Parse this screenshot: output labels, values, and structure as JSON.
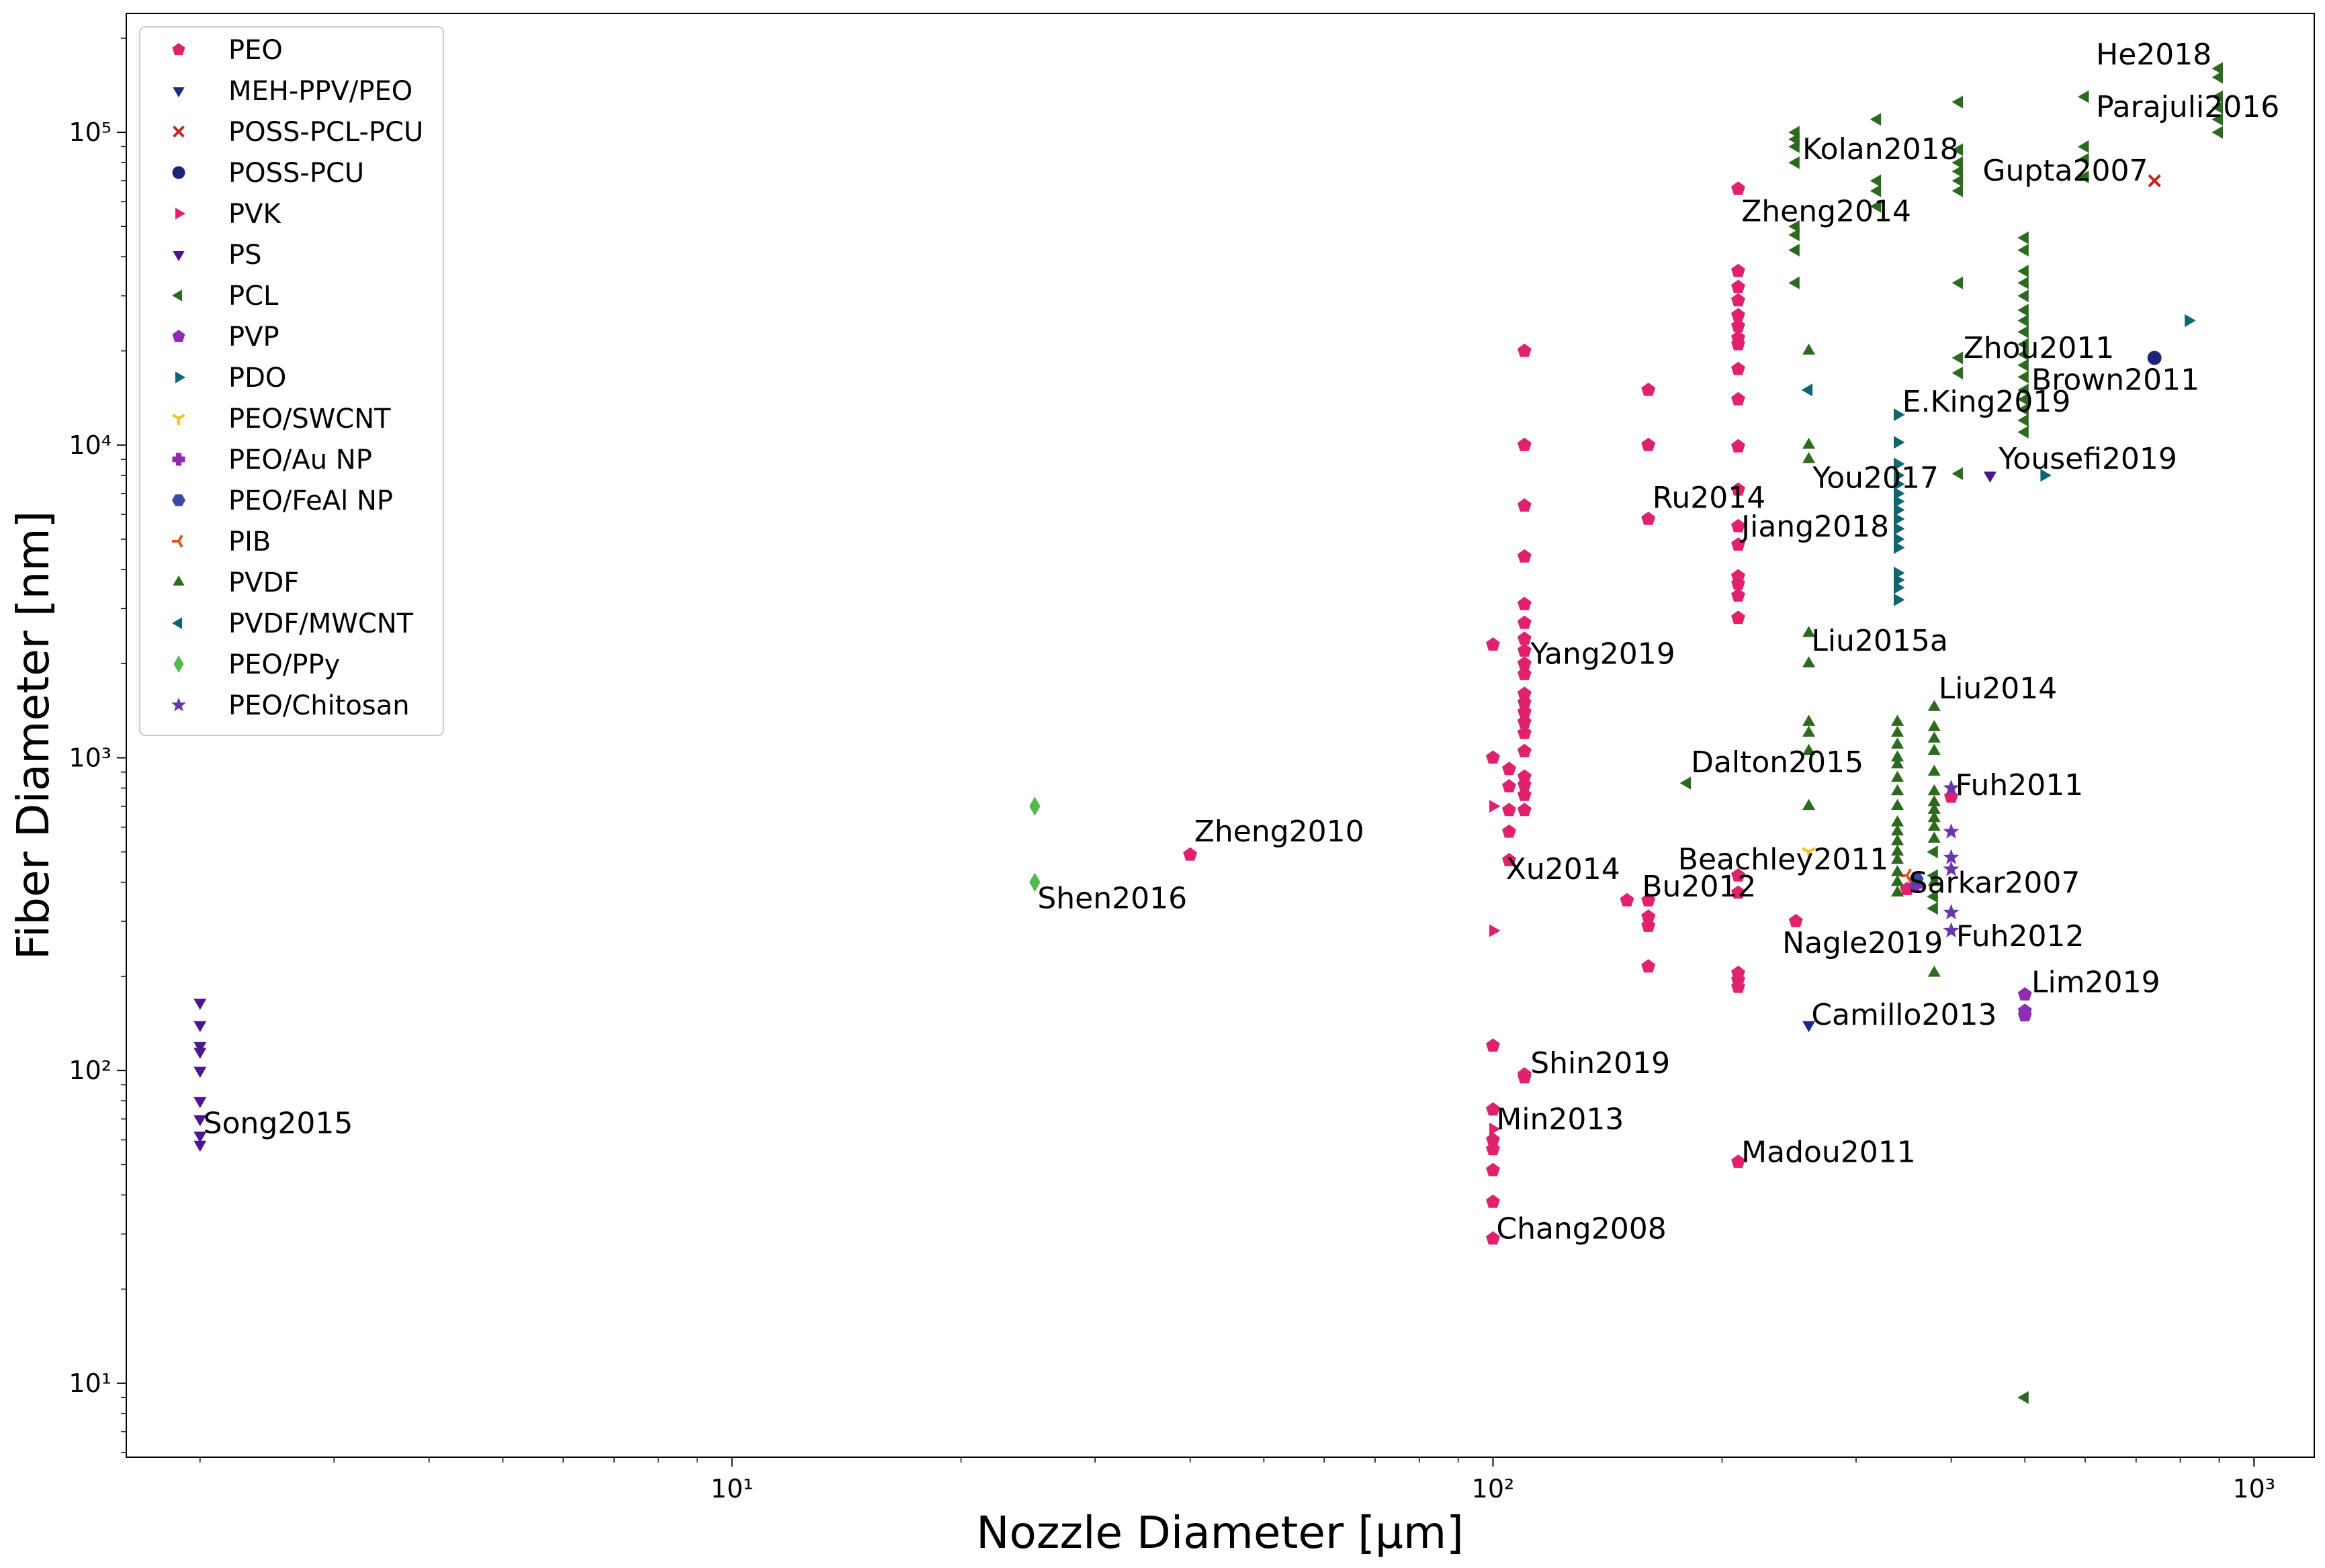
{
  "chart_data": {
    "type": "scatter",
    "xlabel": "Nozzle Diameter    [μm]",
    "ylabel": "Fiber Diameter    [nm]",
    "xscale": "log",
    "yscale": "log",
    "xlim": [
      1.6,
      1200
    ],
    "ylim": [
      5.8,
      240000
    ],
    "xticks": [
      {
        "value": 10,
        "label": "10¹"
      },
      {
        "value": 100,
        "label": "10²"
      },
      {
        "value": 1000,
        "label": "10³"
      }
    ],
    "yticks": [
      {
        "value": 10,
        "label": "10¹"
      },
      {
        "value": 100,
        "label": "10²"
      },
      {
        "value": 1000,
        "label": "10³"
      },
      {
        "value": 10000,
        "label": "10⁴"
      },
      {
        "value": 100000,
        "label": "10⁵"
      }
    ],
    "grid": false,
    "legend_position": "top-left",
    "series": [
      {
        "name": "PEO",
        "marker": "pentagon",
        "color": "#e0226e",
        "points": [
          [
            40,
            490
          ],
          [
            100,
            2300
          ],
          [
            100,
            1000
          ],
          [
            100,
            120
          ],
          [
            100,
            75
          ],
          [
            100,
            60
          ],
          [
            100,
            56
          ],
          [
            100,
            48
          ],
          [
            100,
            38
          ],
          [
            100,
            29
          ],
          [
            105,
            920
          ],
          [
            105,
            810
          ],
          [
            105,
            680
          ],
          [
            105,
            580
          ],
          [
            105,
            470
          ],
          [
            110,
            20000
          ],
          [
            110,
            10000
          ],
          [
            110,
            6400
          ],
          [
            110,
            4400
          ],
          [
            110,
            3100
          ],
          [
            110,
            2700
          ],
          [
            110,
            2400
          ],
          [
            110,
            2200
          ],
          [
            110,
            2000
          ],
          [
            110,
            1850
          ],
          [
            110,
            1600
          ],
          [
            110,
            1500
          ],
          [
            110,
            1400
          ],
          [
            110,
            1300
          ],
          [
            110,
            1200
          ],
          [
            110,
            1050
          ],
          [
            110,
            870
          ],
          [
            110,
            820
          ],
          [
            110,
            760
          ],
          [
            110,
            680
          ],
          [
            110,
            97
          ],
          [
            110,
            95
          ],
          [
            150,
            350
          ],
          [
            160,
            15000
          ],
          [
            160,
            10000
          ],
          [
            160,
            5800
          ],
          [
            160,
            350
          ],
          [
            160,
            310
          ],
          [
            160,
            290
          ],
          [
            160,
            215
          ],
          [
            210,
            66000
          ],
          [
            210,
            36000
          ],
          [
            210,
            32000
          ],
          [
            210,
            29000
          ],
          [
            210,
            26000
          ],
          [
            210,
            24000
          ],
          [
            210,
            22000
          ],
          [
            210,
            21000
          ],
          [
            210,
            17500
          ],
          [
            210,
            14000
          ],
          [
            210,
            9900
          ],
          [
            210,
            7200
          ],
          [
            210,
            5500
          ],
          [
            210,
            4800
          ],
          [
            210,
            3800
          ],
          [
            210,
            3600
          ],
          [
            210,
            3300
          ],
          [
            210,
            2800
          ],
          [
            210,
            420
          ],
          [
            210,
            370
          ],
          [
            210,
            205
          ],
          [
            210,
            195
          ],
          [
            210,
            185
          ],
          [
            210,
            51
          ],
          [
            250,
            300
          ],
          [
            350,
            380
          ],
          [
            400,
            750
          ]
        ]
      },
      {
        "name": "MEH-PPV/PEO",
        "marker": "tri-down",
        "color": "#1c2a80",
        "points": [
          [
            260,
            140
          ]
        ]
      },
      {
        "name": "POSS-PCL-PCU",
        "marker": "x",
        "color": "#c0261e",
        "points": [
          [
            740,
            70000
          ]
        ]
      },
      {
        "name": "POSS-PCU",
        "marker": "circle",
        "color": "#1c237a",
        "points": [
          [
            740,
            19000
          ]
        ]
      },
      {
        "name": "PVK",
        "marker": "tri-right",
        "color": "#e0226e",
        "points": [
          [
            100,
            700
          ],
          [
            100,
            280
          ],
          [
            100,
            65
          ]
        ]
      },
      {
        "name": "PS",
        "marker": "tri-down",
        "color": "#4b1594",
        "points": [
          [
            2,
            165
          ],
          [
            2,
            140
          ],
          [
            2,
            120
          ],
          [
            2,
            115
          ],
          [
            2,
            100
          ],
          [
            2,
            80
          ],
          [
            2,
            70
          ],
          [
            2,
            62
          ],
          [
            2,
            58
          ],
          [
            450,
            8000
          ]
        ]
      },
      {
        "name": "PCL",
        "marker": "tri-left",
        "color": "#2d6a1f",
        "points": [
          [
            180,
            830
          ],
          [
            250,
            100000
          ],
          [
            250,
            95000
          ],
          [
            250,
            90000
          ],
          [
            250,
            80000
          ],
          [
            250,
            50000
          ],
          [
            250,
            47000
          ],
          [
            250,
            42000
          ],
          [
            250,
            33000
          ],
          [
            320,
            110000
          ],
          [
            320,
            70000
          ],
          [
            320,
            65000
          ],
          [
            320,
            58000
          ],
          [
            410,
            125000
          ],
          [
            410,
            88000
          ],
          [
            410,
            80000
          ],
          [
            410,
            75000
          ],
          [
            410,
            70000
          ],
          [
            410,
            65000
          ],
          [
            410,
            33000
          ],
          [
            410,
            19000
          ],
          [
            410,
            17000
          ],
          [
            410,
            8100
          ],
          [
            600,
            130000
          ],
          [
            600,
            90000
          ],
          [
            600,
            82000
          ],
          [
            600,
            72000
          ],
          [
            900,
            160000
          ],
          [
            900,
            150000
          ],
          [
            900,
            130000
          ],
          [
            900,
            120000
          ],
          [
            900,
            110000
          ],
          [
            900,
            100000
          ],
          [
            500,
            46000
          ],
          [
            500,
            42000
          ],
          [
            500,
            36000
          ],
          [
            500,
            33000
          ],
          [
            500,
            30000
          ],
          [
            500,
            27000
          ],
          [
            500,
            25000
          ],
          [
            500,
            23000
          ],
          [
            500,
            21000
          ],
          [
            500,
            19500
          ],
          [
            500,
            18000
          ],
          [
            500,
            16500
          ],
          [
            500,
            15000
          ],
          [
            500,
            14000
          ],
          [
            500,
            13000
          ],
          [
            500,
            12000
          ],
          [
            500,
            11000
          ],
          [
            500,
            9
          ],
          [
            380,
            500
          ],
          [
            380,
            420
          ],
          [
            380,
            360
          ],
          [
            380,
            330
          ]
        ]
      },
      {
        "name": "PVP",
        "marker": "pentagon",
        "color": "#8e2cb2",
        "points": [
          [
            500,
            175
          ],
          [
            500,
            155
          ],
          [
            500,
            150
          ]
        ]
      },
      {
        "name": "PDO",
        "marker": "tri-right",
        "color": "#0d6670",
        "points": [
          [
            820,
            25000
          ],
          [
            530,
            8000
          ],
          [
            340,
            12500
          ],
          [
            340,
            10200
          ],
          [
            340,
            8700
          ],
          [
            340,
            8000
          ],
          [
            340,
            7500
          ],
          [
            340,
            7000
          ],
          [
            340,
            6600
          ],
          [
            340,
            6200
          ],
          [
            340,
            5800
          ],
          [
            340,
            5400
          ],
          [
            340,
            5000
          ],
          [
            340,
            4700
          ],
          [
            340,
            3900
          ],
          [
            340,
            3700
          ],
          [
            340,
            3500
          ],
          [
            340,
            3200
          ]
        ]
      },
      {
        "name": "PEO/SWCNT",
        "marker": "tri-down-thin",
        "color": "#f0c419",
        "points": [
          [
            260,
            500
          ]
        ]
      },
      {
        "name": "PEO/Au NP",
        "marker": "plus",
        "color": "#8e2cb2",
        "points": [
          [
            360,
            390
          ]
        ]
      },
      {
        "name": "PEO/FeAl NP",
        "marker": "hexagon",
        "color": "#3a4aa0",
        "points": [
          [
            360,
            410
          ]
        ]
      },
      {
        "name": "PIB",
        "marker": "tri-left-thin",
        "color": "#e0551e",
        "points": [
          [
            350,
            420
          ]
        ]
      },
      {
        "name": "PVDF",
        "marker": "tri-up",
        "color": "#2d6a1f",
        "points": [
          [
            260,
            20000
          ],
          [
            260,
            10000
          ],
          [
            260,
            9000
          ],
          [
            260,
            2500
          ],
          [
            260,
            2000
          ],
          [
            260,
            1300
          ],
          [
            260,
            1200
          ],
          [
            260,
            1050
          ],
          [
            260,
            700
          ],
          [
            340,
            1300
          ],
          [
            340,
            1200
          ],
          [
            340,
            1100
          ],
          [
            340,
            1000
          ],
          [
            340,
            950
          ],
          [
            340,
            860
          ],
          [
            340,
            780
          ],
          [
            340,
            700
          ],
          [
            340,
            620
          ],
          [
            340,
            580
          ],
          [
            340,
            540
          ],
          [
            340,
            500
          ],
          [
            340,
            470
          ],
          [
            340,
            430
          ],
          [
            340,
            400
          ],
          [
            340,
            370
          ],
          [
            380,
            1450
          ],
          [
            380,
            1250
          ],
          [
            380,
            1150
          ],
          [
            380,
            1050
          ],
          [
            380,
            900
          ],
          [
            380,
            780
          ],
          [
            380,
            720
          ],
          [
            380,
            680
          ],
          [
            380,
            640
          ],
          [
            380,
            600
          ],
          [
            380,
            550
          ],
          [
            380,
            400
          ],
          [
            380,
            205
          ]
        ]
      },
      {
        "name": "PVDF/MWCNT",
        "marker": "tri-left",
        "color": "#0d6670",
        "points": [
          [
            260,
            15000
          ]
        ]
      },
      {
        "name": "PEO/PPy",
        "marker": "diamond",
        "color": "#52b94a",
        "points": [
          [
            25,
            700
          ],
          [
            25,
            400
          ]
        ]
      },
      {
        "name": "PEO/Chitosan",
        "marker": "star",
        "color": "#6a35b0",
        "points": [
          [
            400,
            800
          ],
          [
            400,
            580
          ],
          [
            400,
            480
          ],
          [
            400,
            440
          ],
          [
            400,
            320
          ],
          [
            400,
            280
          ]
        ]
      }
    ],
    "annotations": [
      {
        "text": "He2018",
        "x": 620,
        "y": 165000
      },
      {
        "text": "Parajuli2016",
        "x": 620,
        "y": 112000
      },
      {
        "text": "Kolan2018",
        "x": 255,
        "y": 82000
      },
      {
        "text": "Gupta2007",
        "x": 440,
        "y": 70000
      },
      {
        "text": "Zheng2014",
        "x": 212,
        "y": 52000
      },
      {
        "text": "Zhou2011",
        "x": 415,
        "y": 19000
      },
      {
        "text": "E.King2019",
        "x": 345,
        "y": 12800
      },
      {
        "text": "Yousefi2019",
        "x": 462,
        "y": 8400
      },
      {
        "text": "You2017",
        "x": 263,
        "y": 7300
      },
      {
        "text": "Ru2014",
        "x": 162,
        "y": 6300
      },
      {
        "text": "Jiang2018",
        "x": 212,
        "y": 5100
      },
      {
        "text": "Yang2019",
        "x": 112,
        "y": 2000
      },
      {
        "text": "Liu2015a",
        "x": 262,
        "y": 2200
      },
      {
        "text": "Liu2014",
        "x": 385,
        "y": 1550
      },
      {
        "text": "Dalton2015",
        "x": 182,
        "y": 900
      },
      {
        "text": "Fuh2011",
        "x": 405,
        "y": 760
      },
      {
        "text": "Zheng2010",
        "x": 40.5,
        "y": 540
      },
      {
        "text": "Beachley2011",
        "x": 175,
        "y": 440
      },
      {
        "text": "Xu2014",
        "x": 104,
        "y": 410
      },
      {
        "text": "Sarkar2007",
        "x": 352,
        "y": 370
      },
      {
        "text": "Bu2012",
        "x": 157,
        "y": 360
      },
      {
        "text": "Shen2016",
        "x": 25.2,
        "y": 330
      },
      {
        "text": "Fuh2012",
        "x": 406,
        "y": 250
      },
      {
        "text": "Nagle2019",
        "x": 240,
        "y": 238
      },
      {
        "text": "Lim2019",
        "x": 510,
        "y": 178
      },
      {
        "text": "Camillo2013",
        "x": 262,
        "y": 140
      },
      {
        "text": "Shin2019",
        "x": 112,
        "y": 98
      },
      {
        "text": "Song2015",
        "x": 2.02,
        "y": 63
      },
      {
        "text": "Min2013",
        "x": 101,
        "y": 65
      },
      {
        "text": "Madou2011",
        "x": 212,
        "y": 51
      },
      {
        "text": "Chang2008",
        "x": 101,
        "y": 29
      },
      {
        "text": "Brown2011",
        "x": 510,
        "y": 15000
      }
    ]
  }
}
